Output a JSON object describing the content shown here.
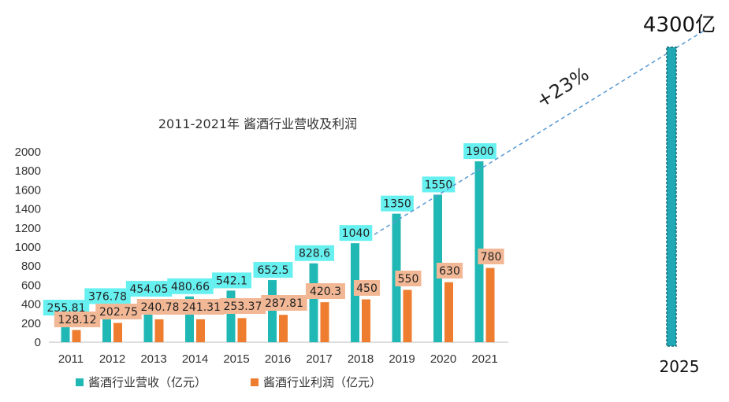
{
  "chart_data": {
    "type": "bar",
    "title": "2011-2021年 酱酒行业营收及利润",
    "categories": [
      "2011",
      "2012",
      "2013",
      "2014",
      "2015",
      "2016",
      "2017",
      "2018",
      "2019",
      "2020",
      "2021"
    ],
    "series": [
      {
        "name": "酱酒行业营收（亿元）",
        "color": "#20B8B4",
        "values": [
          255.81,
          376.78,
          454.05,
          480.66,
          542.1,
          652.5,
          828.6,
          1040,
          1350,
          1550,
          1900
        ],
        "labels": [
          "255.81",
          "376.78",
          "454.05",
          "480.66",
          "542.1",
          "652.5",
          "828.6",
          "1040",
          "1350",
          "1550",
          "1900"
        ]
      },
      {
        "name": "酱酒行业利润（亿元）",
        "color": "#EE7D2F",
        "values": [
          128.12,
          202.75,
          240.78,
          241.31,
          253.37,
          287.81,
          420.3,
          450,
          550,
          630,
          780
        ],
        "labels": [
          "128.12",
          "202.75",
          "240.78",
          "241.31",
          "253.37",
          "287.81",
          "420.3",
          "450",
          "550",
          "630",
          "780"
        ]
      }
    ],
    "ylim": [
      0,
      2000
    ],
    "yticks": [
      0,
      200,
      400,
      600,
      800,
      1000,
      1200,
      1400,
      1600,
      1800,
      2000
    ],
    "label_colors": {
      "revenue": "#66F0F0",
      "profit": "#F2B896"
    },
    "projection": {
      "category": "2025",
      "value_label": "4300亿",
      "growth_label": "+23%",
      "bar_color": "#20A8B4",
      "line_color": "#5B9BD5"
    },
    "legend_position": "bottom",
    "grid": false
  }
}
